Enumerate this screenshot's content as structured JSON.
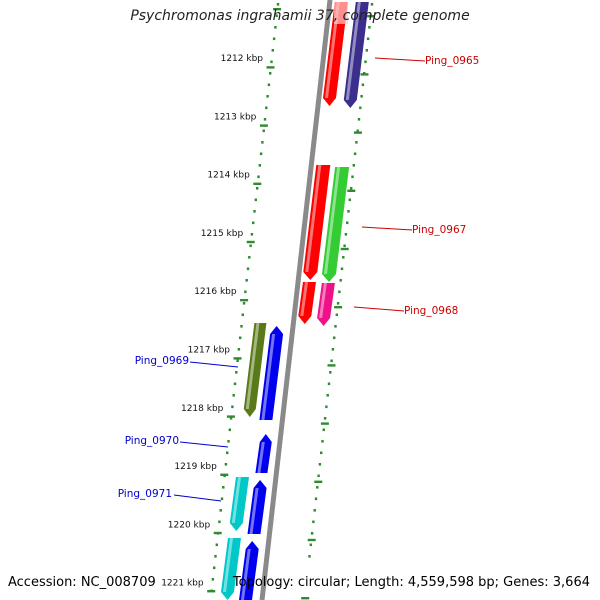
{
  "title": "Psychromonas ingrahamii 37, complete genome",
  "accession_label": "Accession: NC_008709",
  "topology_label": "Topology: circular; Length: 4,559,598 bp; Genes: 3,664",
  "scale_labels": [
    "1212 kbp",
    "1213 kbp",
    "1214 kbp",
    "1215 kbp",
    "1216 kbp",
    "1217 kbp",
    "1218 kbp",
    "1219 kbp",
    "1220 kbp",
    "1221 kbp"
  ],
  "gene_labels": [
    {
      "text": "Ping_0965",
      "strand": "plus",
      "color": "#cc0000"
    },
    {
      "text": "Ping_0967",
      "strand": "plus",
      "color": "#cc0000"
    },
    {
      "text": "Ping_0968",
      "strand": "plus",
      "color": "#cc0000"
    },
    {
      "text": "Ping_0969",
      "strand": "minus",
      "color": "#0000cc"
    },
    {
      "text": "Ping_0970",
      "strand": "minus",
      "color": "#0000cc"
    },
    {
      "text": "Ping_0971",
      "strand": "minus",
      "color": "#0000cc"
    }
  ],
  "colors": {
    "backbone": "#8a8a8a",
    "ticks": "#2e8b2e",
    "red": "#ff0000",
    "navy": "#3a2f8c",
    "green": "#33cc33",
    "magenta": "#ee1188",
    "olive": "#5a7a1a",
    "blue": "#0000ee",
    "cyan": "#00c8c8"
  }
}
